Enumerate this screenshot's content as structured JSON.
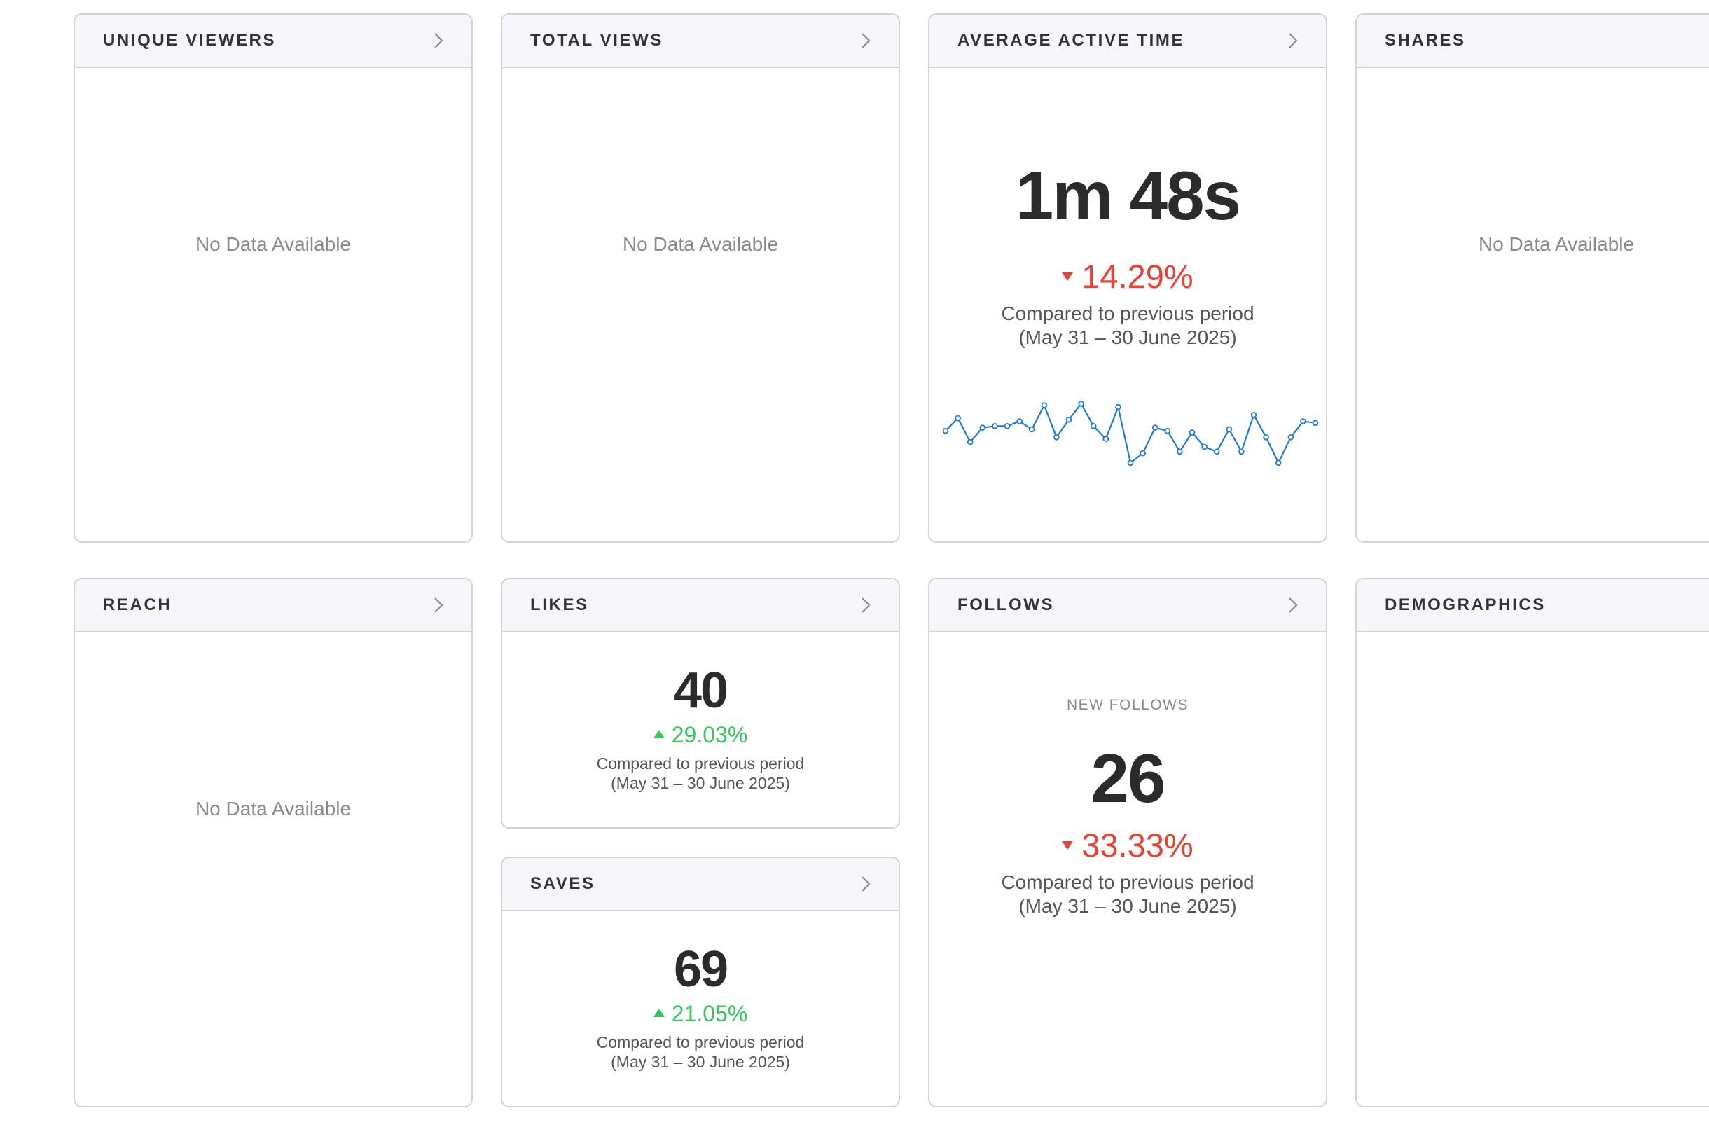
{
  "colors": {
    "border": "#d2d2d7",
    "header_bg": "#f6f6fa",
    "negative": "#ea4335",
    "positive": "#34c759",
    "sparkline": "#1f7ad6"
  },
  "icons": {
    "card_chevron": "chevron-right-icon",
    "delta_down": "triangle-down-icon",
    "delta_up": "triangle-up-icon"
  },
  "cards": {
    "unique_viewers": {
      "title": "UNIQUE VIEWERS",
      "empty": "No Data Available"
    },
    "total_views": {
      "title": "TOTAL VIEWS",
      "empty": "No Data Available"
    },
    "avg_active_time": {
      "title": "AVERAGE ACTIVE TIME",
      "value": "1m 48s",
      "delta": "14.29%",
      "direction": "down",
      "compare_line1": "Compared to previous period",
      "compare_line2": "(May 31 – 30 June 2025)"
    },
    "shares": {
      "title": "SHARES",
      "empty": "No Data Available"
    },
    "reach": {
      "title": "REACH",
      "empty": "No Data Available"
    },
    "likes": {
      "title": "LIKES",
      "value": "40",
      "delta": "29.03%",
      "direction": "up",
      "compare_line1": "Compared to previous period",
      "compare_line2": "(May 31 – 30 June 2025)"
    },
    "saves": {
      "title": "SAVES",
      "value": "69",
      "delta": "21.05%",
      "direction": "up",
      "compare_line1": "Compared to previous period",
      "compare_line2": "(May 31 – 30 June 2025)"
    },
    "follows": {
      "title": "FOLLOWS",
      "sublabel": "NEW FOLLOWS",
      "value": "26",
      "delta": "33.33%",
      "direction": "down",
      "compare_line1": "Compared to previous period",
      "compare_line2": "(May 31 – 30 June 2025)"
    },
    "demographics": {
      "title": "DEMOGRAPHICS"
    }
  },
  "chart_data": {
    "type": "line",
    "series": [
      {
        "values": [
          48,
          56,
          41,
          50,
          51,
          51,
          54,
          49,
          64,
          44,
          55,
          65,
          51,
          43,
          63,
          28,
          34,
          50,
          48,
          35,
          47,
          38,
          35,
          49,
          35,
          58,
          44,
          28,
          44,
          54,
          53
        ]
      }
    ],
    "ylim": [
      20,
      70
    ],
    "grid": false
  }
}
